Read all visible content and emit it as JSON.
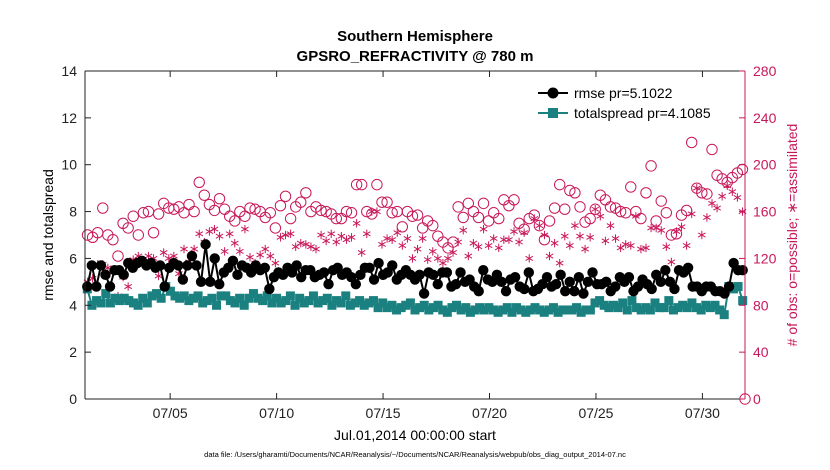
{
  "chart_data": {
    "type": "line",
    "title": "Southern Hemisphere",
    "subtitle": "GPSRO_REFRACTIVITY @ 780 m",
    "xlabel": "Jul.01,2014 00:00:00 start",
    "ylabel": "rmse and totalspread",
    "y2label": "# of obs: o=possible; ∗=assimilated",
    "xlim": [
      1,
      32
    ],
    "ylim": [
      0,
      14
    ],
    "y2lim": [
      0,
      280
    ],
    "yticks": [
      "0",
      "2",
      "4",
      "6",
      "8",
      "10",
      "12",
      "14"
    ],
    "y2ticks": [
      "0",
      "40",
      "80",
      "120",
      "160",
      "200",
      "240",
      "280"
    ],
    "xticks": [
      {
        "x": 5,
        "label": "07/05"
      },
      {
        "x": 10,
        "label": "07/10"
      },
      {
        "x": 15,
        "label": "07/15"
      },
      {
        "x": 20,
        "label": "07/20"
      },
      {
        "x": 25,
        "label": "07/25"
      },
      {
        "x": 30,
        "label": "07/30"
      }
    ],
    "legend_position": "top-right",
    "series": [
      {
        "name": "rmse",
        "legend": "rmse pr=5.1022",
        "color": "#000000",
        "marker": "circle",
        "axis": "left",
        "values": [
          4.8,
          5.7,
          4.8,
          5.7,
          5.3,
          4.8,
          5.5,
          5.5,
          5.3,
          5.8,
          5.6,
          5.8,
          5.9,
          5.7,
          5.8,
          5.6,
          5.7,
          4.8,
          5.6,
          5.8,
          5.7,
          5.1,
          5.7,
          6.1,
          5.7,
          5.0,
          6.6,
          5.0,
          6.0,
          4.9,
          5.4,
          5.6,
          5.9,
          5.3,
          5.7,
          5.6,
          5.4,
          5.7,
          5.5,
          5.6,
          4.7,
          5.2,
          5.4,
          5.3,
          5.6,
          5.4,
          5.7,
          5.2,
          5.5,
          5.5,
          5.2,
          5.3,
          5.4,
          4.9,
          5.5,
          5.6,
          5.3,
          5.4,
          5.2,
          4.9,
          5.3,
          5.6,
          5.6,
          5.1,
          5.8,
          5.3,
          5.4,
          5.7,
          5.1,
          5.3,
          5.5,
          5.3,
          5.1,
          5.3,
          4.5,
          5.4,
          5.3,
          4.9,
          5.4,
          5.4,
          4.8,
          4.9,
          5.4,
          5.0,
          5.1,
          4.8,
          4.6,
          5.5,
          5.1,
          5.0,
          5.3,
          5.0,
          4.6,
          5.1,
          5.2,
          4.8,
          4.7,
          5.4,
          4.6,
          4.7,
          4.9,
          5.2,
          4.8,
          4.9,
          5.3,
          4.6,
          5.0,
          4.6,
          5.2,
          4.5,
          5.0,
          5.4,
          4.9,
          4.9,
          5.0,
          4.6,
          4.8,
          5.2,
          5.0,
          5.2,
          4.6,
          4.8,
          5.1,
          4.9,
          4.7,
          5.3,
          5.0,
          5.5,
          5.0,
          4.7,
          5.5,
          5.4,
          5.6,
          4.8,
          4.8,
          4.6,
          4.8,
          4.8,
          4.6,
          4.6,
          4.5,
          4.8,
          5.8,
          5.5,
          5.5
        ]
      },
      {
        "name": "totalspread",
        "legend": "totalspread pr=4.1085",
        "color": "#1a8080",
        "marker": "square",
        "axis": "left",
        "values": [
          4.7,
          4.0,
          4.2,
          4.1,
          4.5,
          4.1,
          4.3,
          4.2,
          4.3,
          4.2,
          4.1,
          4.0,
          4.3,
          4.1,
          4.4,
          4.5,
          4.3,
          4.8,
          4.6,
          4.4,
          4.3,
          4.4,
          4.2,
          4.3,
          4.4,
          4.1,
          4.2,
          4.3,
          4.0,
          4.4,
          4.4,
          4.2,
          4.1,
          4.3,
          4.0,
          4.3,
          4.5,
          4.3,
          4.2,
          4.4,
          4.1,
          4.3,
          4.1,
          4.2,
          4.4,
          4.0,
          4.3,
          4.1,
          4.2,
          4.4,
          4.1,
          4.2,
          4.3,
          4.0,
          4.2,
          4.1,
          4.4,
          4.0,
          4.1,
          4.2,
          4.0,
          4.1,
          4.2,
          3.9,
          4.1,
          3.9,
          4.0,
          3.8,
          3.9,
          4.0,
          4.1,
          3.8,
          3.9,
          4.0,
          3.8,
          3.9,
          4.0,
          3.8,
          3.7,
          3.9,
          4.0,
          3.8,
          3.9,
          3.7,
          3.8,
          3.9,
          3.8,
          3.9,
          3.8,
          3.7,
          3.8,
          3.9,
          3.7,
          3.9,
          3.8,
          3.7,
          3.8,
          3.9,
          3.8,
          3.7,
          3.8,
          3.9,
          3.7,
          3.8,
          3.8,
          3.8,
          3.9,
          3.7,
          3.8,
          3.8,
          4.1,
          4.2,
          4.0,
          3.9,
          4.0,
          3.9,
          4.1,
          3.8,
          4.2,
          3.9,
          3.8,
          3.9,
          3.8,
          4.1,
          3.9,
          3.9,
          4.2,
          3.8,
          3.9,
          4.0,
          3.9,
          4.1,
          3.9,
          3.8,
          4.0,
          3.9,
          4.0,
          3.8,
          3.6,
          4.8,
          4.7,
          4.8,
          4.2
        ]
      },
      {
        "name": "possible",
        "color": "#c8185a",
        "marker": "open-circle",
        "axis": "right",
        "values": [
          140,
          138,
          142,
          163,
          140,
          136,
          122,
          150,
          146,
          156,
          140,
          159,
          160,
          142,
          158,
          167,
          163,
          162,
          164,
          159,
          166,
          160,
          185,
          174,
          166,
          161,
          171,
          162,
          156,
          152,
          160,
          156,
          163,
          162,
          160,
          155,
          159,
          146,
          165,
          173,
          154,
          164,
          168,
          176,
          160,
          164,
          161,
          160,
          158,
          154,
          154,
          160,
          159,
          183,
          183,
          160,
          158,
          183,
          168,
          168,
          159,
          160,
          147,
          160,
          156,
          157,
          146,
          152,
          148,
          139,
          134,
          129,
          134,
          164,
          155,
          167,
          160,
          155,
          167,
          152,
          159,
          154,
          170,
          165,
          170,
          150,
          145,
          154,
          157,
          148,
          136,
          152,
          163,
          183,
          162,
          178,
          176,
          164,
          151,
          154,
          162,
          174,
          170,
          164,
          163,
          160,
          159,
          181,
          160,
          154,
          176,
          199,
          152,
          169,
          159,
          140,
          141,
          157,
          161,
          219,
          180,
          176,
          175,
          213,
          191,
          188,
          185,
          189,
          193,
          196
        ]
      },
      {
        "name": "assimilated",
        "color": "#c8185a",
        "marker": "asterisk",
        "axis": "right",
        "values": [
          100,
          103,
          115,
          115,
          112,
          108,
          88,
          104,
          96,
          119,
          122,
          115,
          122,
          120,
          105,
          125,
          120,
          122,
          107,
          128,
          117,
          128,
          141,
          134,
          143,
          145,
          139,
          126,
          141,
          133,
          126,
          145,
          121,
          116,
          123,
          128,
          122,
          116,
          138,
          140,
          141,
          130,
          133,
          132,
          130,
          128,
          140,
          135,
          141,
          134,
          139,
          136,
          138,
          150,
          125,
          141,
          160,
          160,
          132,
          137,
          136,
          142,
          131,
          137,
          120,
          128,
          137,
          119,
          126,
          120,
          116,
          120,
          125,
          134,
          144,
          122,
          133,
          130,
          145,
          131,
          137,
          129,
          136,
          136,
          143,
          134,
          142,
          120,
          154,
          148,
          140,
          122,
          133,
          116,
          139,
          131,
          148,
          139,
          128,
          138,
          162,
          156,
          135,
          148,
          137,
          129,
          132,
          131,
          156,
          128,
          129,
          146,
          146,
          144,
          130,
          117,
          143,
          147,
          131,
          158,
          180,
          140,
          155,
          167,
          163,
          173,
          182,
          177,
          172,
          160
        ]
      }
    ]
  },
  "footnote": "data file: /Users/gharamti/Documents/NCAR/Reanalysis/~/Documents/NCAR/Reanalysis/webpub/obs_diag_output_2014-07.nc"
}
